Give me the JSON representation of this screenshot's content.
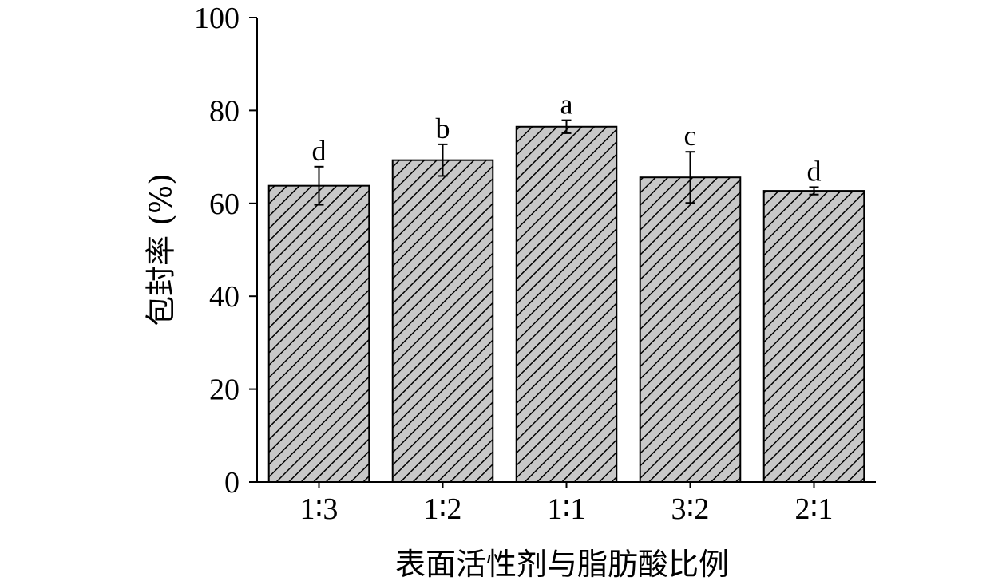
{
  "chart_data": {
    "type": "bar",
    "title": "",
    "xlabel": "表面活性剂与脂肪酸比例",
    "ylabel": "包封率 (%)",
    "ylim": [
      0,
      100
    ],
    "yticks": [
      0,
      20,
      40,
      60,
      80,
      100
    ],
    "categories": [
      "1∶3",
      "1∶2",
      "1∶1",
      "3∶2",
      "2∶1"
    ],
    "series": [
      {
        "values": [
          63.8,
          69.3,
          76.5,
          65.6,
          62.7
        ],
        "errors": [
          4.1,
          3.4,
          1.4,
          5.5,
          0.8
        ],
        "significance": [
          "d",
          "b",
          "a",
          "c",
          "d"
        ]
      }
    ],
    "bar_fill": "#c8c8c8",
    "hatch_color": "#000000",
    "grid": false,
    "legend": "none"
  }
}
